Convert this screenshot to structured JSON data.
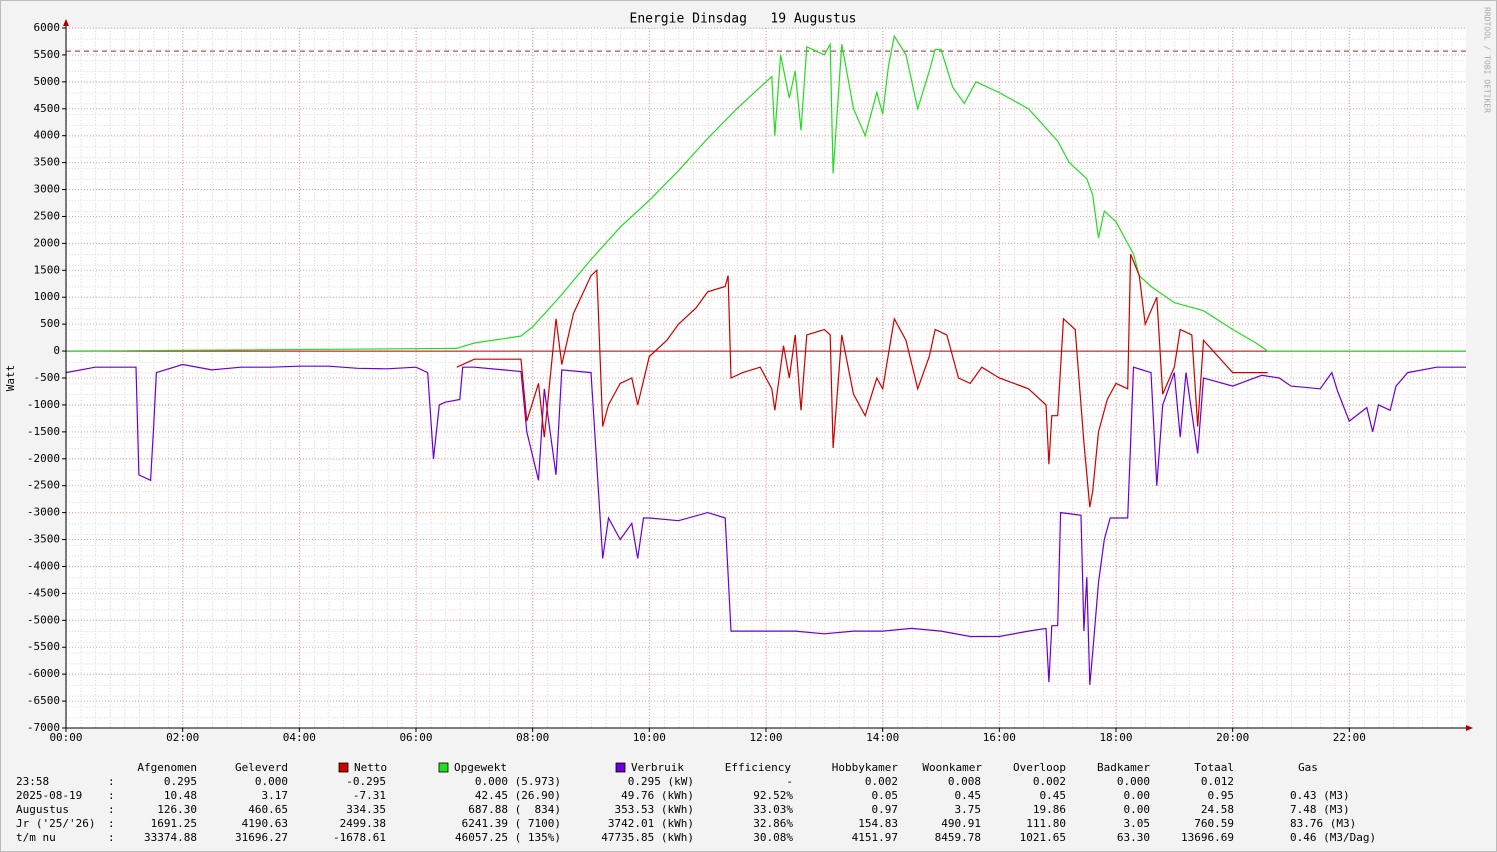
{
  "chart_data": {
    "type": "line",
    "step": false,
    "title": "Energie Dinsdag   19 Augustus",
    "y_label": "Watt",
    "credit": "RRDTOOL / TOBI OETIKER",
    "xlim": [
      0,
      24
    ],
    "ylim": [
      -7000,
      6000
    ],
    "xticks": [
      {
        "value": 0,
        "label": "00:00"
      },
      {
        "value": 2,
        "label": "02:00"
      },
      {
        "value": 4,
        "label": "04:00"
      },
      {
        "value": 6,
        "label": "06:00"
      },
      {
        "value": 8,
        "label": "08:00"
      },
      {
        "value": 10,
        "label": "10:00"
      },
      {
        "value": 12,
        "label": "12:00"
      },
      {
        "value": 14,
        "label": "14:00"
      },
      {
        "value": 16,
        "label": "16:00"
      },
      {
        "value": 18,
        "label": "18:00"
      },
      {
        "value": 20,
        "label": "20:00"
      },
      {
        "value": 22,
        "label": "22:00"
      }
    ],
    "yticks": [
      6000,
      5500,
      5000,
      4500,
      4000,
      3500,
      3000,
      2500,
      2000,
      1500,
      1000,
      500,
      0,
      -500,
      -1000,
      -1500,
      -2000,
      -2500,
      -3000,
      -3500,
      -4000,
      -4500,
      -5000,
      -5500,
      -6000,
      -6500,
      -7000
    ],
    "grid": true,
    "max_line": {
      "value": 5570,
      "color": "#993333"
    },
    "zero_line_color": "#cc0000",
    "series": [
      {
        "name": "Verbruik",
        "color": "#6a00d8",
        "x": [
          0,
          0.5,
          1,
          1.2,
          1.25,
          1.45,
          1.5,
          1.55,
          2,
          2.5,
          3,
          3.5,
          4,
          4.5,
          5,
          5.5,
          6,
          6.2,
          6.3,
          6.4,
          6.5,
          6.75,
          6.8,
          7,
          7.5,
          7.8,
          7.9,
          8.1,
          8.2,
          8.4,
          8.5,
          9,
          9.2,
          9.3,
          9.5,
          9.7,
          9.8,
          9.9,
          10,
          10.5,
          11,
          11.3,
          11.4,
          12,
          12.5,
          13,
          13.5,
          14,
          14.5,
          15,
          15.5,
          16,
          16.5,
          16.8,
          16.85,
          16.9,
          17,
          17.05,
          17.4,
          17.45,
          17.5,
          17.55,
          17.6,
          17.7,
          17.8,
          17.9,
          18.2,
          18.3,
          18.6,
          18.7,
          18.8,
          19,
          19.1,
          19.2,
          19.4,
          19.5,
          20,
          20.5,
          20.8,
          21,
          21.5,
          21.7,
          21.8,
          22,
          22.3,
          22.4,
          22.5,
          22.7,
          22.8,
          23,
          23.5,
          24
        ],
        "values": [
          -400,
          -300,
          -300,
          -300,
          -2300,
          -2400,
          -1450,
          -400,
          -250,
          -350,
          -300,
          -300,
          -280,
          -280,
          -320,
          -330,
          -300,
          -400,
          -2000,
          -1000,
          -950,
          -900,
          -300,
          -300,
          -350,
          -380,
          -1500,
          -2400,
          -700,
          -2300,
          -350,
          -400,
          -3850,
          -3100,
          -3500,
          -3200,
          -3850,
          -3100,
          -3100,
          -3150,
          -3000,
          -3100,
          -5200,
          -5200,
          -5200,
          -5250,
          -5200,
          -5200,
          -5150,
          -5200,
          -5300,
          -5300,
          -5200,
          -5150,
          -6150,
          -5100,
          -5100,
          -3000,
          -3050,
          -5200,
          -4200,
          -6200,
          -5600,
          -4300,
          -3500,
          -3100,
          -3100,
          -300,
          -400,
          -2500,
          -1000,
          -400,
          -1600,
          -400,
          -1900,
          -500,
          -650,
          -450,
          -500,
          -650,
          -700,
          -400,
          -750,
          -1300,
          -1050,
          -1500,
          -1000,
          -1100,
          -650,
          -400,
          -300,
          -300
        ]
      },
      {
        "name": "Opgewekt",
        "color": "#22dd22",
        "x": [
          0,
          6.7,
          7,
          7.5,
          7.8,
          8,
          8.5,
          9,
          9.5,
          10,
          10.5,
          11,
          11.5,
          12,
          12.1,
          12.15,
          12.25,
          12.4,
          12.5,
          12.6,
          12.7,
          13,
          13.1,
          13.15,
          13.3,
          13.5,
          13.7,
          13.9,
          14,
          14.1,
          14.2,
          14.4,
          14.6,
          14.8,
          14.9,
          15,
          15.2,
          15.4,
          15.6,
          16,
          16.5,
          17,
          17.2,
          17.5,
          17.6,
          17.7,
          17.8,
          18,
          18.2,
          18.3,
          18.4,
          18.6,
          19,
          19.5,
          20,
          20.4,
          20.6,
          24
        ],
        "values": [
          0,
          50,
          150,
          230,
          280,
          450,
          1050,
          1700,
          2300,
          2800,
          3350,
          3950,
          4500,
          5000,
          5100,
          4000,
          5500,
          4700,
          5200,
          4100,
          5650,
          5500,
          5700,
          3300,
          5700,
          4500,
          4000,
          4800,
          4400,
          5300,
          5850,
          5500,
          4500,
          5200,
          5600,
          5600,
          4900,
          4600,
          5000,
          4800,
          4500,
          3900,
          3500,
          3200,
          2900,
          2100,
          2600,
          2400,
          2000,
          1800,
          1400,
          1200,
          900,
          750,
          400,
          150,
          0,
          0
        ]
      },
      {
        "name": "Netto",
        "color": "#cc0000",
        "x": [
          6.7,
          7,
          7.5,
          7.8,
          7.9,
          8.1,
          8.2,
          8.4,
          8.5,
          8.7,
          9,
          9.1,
          9.2,
          9.3,
          9.5,
          9.7,
          9.8,
          10,
          10.3,
          10.5,
          10.8,
          11,
          11.3,
          11.35,
          11.4,
          11.6,
          11.9,
          12.1,
          12.15,
          12.3,
          12.4,
          12.5,
          12.6,
          12.7,
          13,
          13.1,
          13.15,
          13.3,
          13.5,
          13.7,
          13.9,
          14,
          14.2,
          14.4,
          14.6,
          14.8,
          14.9,
          15.1,
          15.3,
          15.5,
          15.7,
          16,
          16.5,
          16.8,
          16.85,
          16.9,
          17,
          17.1,
          17.3,
          17.45,
          17.55,
          17.6,
          17.7,
          17.85,
          18,
          18.2,
          18.25,
          18.4,
          18.5,
          18.7,
          18.8,
          19,
          19.1,
          19.3,
          19.4,
          19.5,
          20,
          20.5,
          20.6
        ],
        "values": [
          -300,
          -150,
          -150,
          -150,
          -1300,
          -600,
          -1600,
          600,
          -250,
          700,
          1400,
          1500,
          -1400,
          -1000,
          -600,
          -500,
          -1000,
          -100,
          200,
          500,
          800,
          1100,
          1200,
          1400,
          -500,
          -400,
          -300,
          -700,
          -1100,
          100,
          -500,
          300,
          -1100,
          300,
          400,
          300,
          -1800,
          300,
          -800,
          -1200,
          -500,
          -700,
          600,
          200,
          -700,
          -100,
          400,
          300,
          -500,
          -600,
          -300,
          -500,
          -700,
          -1000,
          -2100,
          -1200,
          -1200,
          600,
          400,
          -1700,
          -2900,
          -2600,
          -1500,
          -900,
          -600,
          -700,
          1800,
          1400,
          500,
          1000,
          -800,
          -300,
          400,
          300,
          -1400,
          200,
          -400,
          -400,
          -400
        ]
      }
    ]
  },
  "table": {
    "separator": ":",
    "columns": [
      "Afgenomen",
      "Geleverd",
      "Netto",
      "Opgewekt",
      "Verbruik",
      "Efficiency",
      "Hobbykamer",
      "Woonkamer",
      "Overloop",
      "Badkamer",
      "Totaal",
      "Gas"
    ],
    "rows": [
      {
        "label": "23:58",
        "values": [
          "0.295",
          "0.000",
          "-0.295",
          "0.000 (5.973)",
          "0.295 (kW)",
          "-",
          "0.002",
          "0.008",
          "0.002",
          "0.000",
          "0.012"
        ]
      },
      {
        "label": "2025-08-19",
        "values": [
          "10.48",
          "3.17",
          "-7.31",
          "42.45 (26.90)",
          "49.76 (kWh)",
          "92.52%",
          "0.05",
          "0.45",
          "0.45",
          "0.00",
          "0.95",
          "0.43 (M3)"
        ]
      },
      {
        "label": "Augustus",
        "values": [
          "126.30",
          "460.65",
          "334.35",
          "687.88 (  834)",
          "353.53 (kWh)",
          "33.03%",
          "0.97",
          "3.75",
          "19.86",
          "0.00",
          "24.58",
          "7.48 (M3)"
        ]
      },
      {
        "label": "Jr ('25/'26)",
        "values": [
          "1691.25",
          "4190.63",
          "2499.38",
          "6241.39 ( 7100)",
          "3742.01 (kWh)",
          "32.86%",
          "154.83",
          "490.91",
          "111.80",
          "3.05",
          "760.59",
          "83.76 (M3)"
        ]
      },
      {
        "label": "t/m nu",
        "values": [
          "33374.88",
          "31696.27",
          "-1678.61",
          "46057.25 ( 135%)",
          "47735.85 (kWh)",
          "30.08%",
          "4151.97",
          "8459.78",
          "1021.65",
          "63.30",
          "13696.69",
          "0.46 (M3/Dag)"
        ]
      }
    ]
  }
}
